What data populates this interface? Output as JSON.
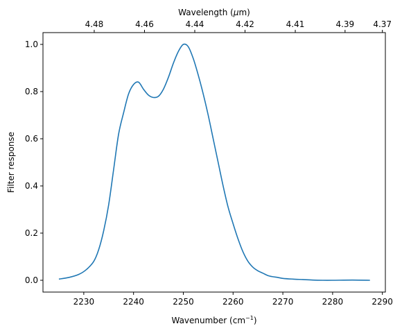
{
  "chart_data": {
    "type": "line",
    "title": "",
    "xlabel": "Wavenumber (cm",
    "xlabel_sup": "−1",
    "xlabel_end": ")",
    "ylabel": "Filter response",
    "top_xlabel": "Wavelength (",
    "top_xlabel_italic": "μ",
    "top_xlabel_end": "m)",
    "xlim": [
      2221.8,
      2290.6
    ],
    "ylim": [
      -0.05,
      1.05
    ],
    "xticks": [
      2230,
      2240,
      2250,
      2260,
      2270,
      2280,
      2290
    ],
    "yticks": [
      0.0,
      0.2,
      0.4,
      0.6,
      0.8,
      1.0
    ],
    "ytick_labels": [
      "0.0",
      "0.2",
      "0.4",
      "0.6",
      "0.8",
      "1.0"
    ],
    "top_ticks": [
      {
        "label": "4.48",
        "wavenumber": 2232.1
      },
      {
        "label": "4.46",
        "wavenumber": 2242.2
      },
      {
        "label": "4.44",
        "wavenumber": 2252.3
      },
      {
        "label": "4.42",
        "wavenumber": 2262.4
      },
      {
        "label": "4.41",
        "wavenumber": 2272.5
      },
      {
        "label": "4.39",
        "wavenumber": 2282.5
      },
      {
        "label": "4.37",
        "wavenumber": 2290.0
      }
    ],
    "grid": false,
    "legend": "none",
    "series": [
      {
        "color": "#1f77b4",
        "x": [
          2225.0,
          2227.0,
          2229.0,
          2230.5,
          2232.0,
          2233.0,
          2234.0,
          2235.0,
          2236.0,
          2237.0,
          2238.0,
          2239.0,
          2240.0,
          2241.0,
          2242.0,
          2243.0,
          2244.0,
          2245.0,
          2246.0,
          2247.0,
          2248.0,
          2249.0,
          2250.0,
          2251.0,
          2252.0,
          2253.0,
          2254.0,
          2255.0,
          2256.0,
          2257.0,
          2258.0,
          2259.0,
          2260.0,
          2261.0,
          2262.0,
          2263.0,
          2264.0,
          2265.0,
          2266.0,
          2267.0,
          2268.0,
          2269.0,
          2270.0,
          2272.0,
          2274.0,
          2276.0,
          2278.0,
          2280.0,
          2284.0,
          2287.5
        ],
        "y": [
          0.005,
          0.012,
          0.025,
          0.045,
          0.08,
          0.13,
          0.21,
          0.32,
          0.47,
          0.62,
          0.71,
          0.79,
          0.83,
          0.84,
          0.81,
          0.785,
          0.775,
          0.78,
          0.81,
          0.86,
          0.92,
          0.97,
          1.0,
          0.99,
          0.94,
          0.87,
          0.79,
          0.7,
          0.6,
          0.5,
          0.4,
          0.31,
          0.24,
          0.175,
          0.12,
          0.08,
          0.055,
          0.04,
          0.03,
          0.02,
          0.015,
          0.012,
          0.008,
          0.005,
          0.003,
          0.001,
          0.0,
          0.0,
          0.001,
          0.0
        ]
      }
    ]
  }
}
